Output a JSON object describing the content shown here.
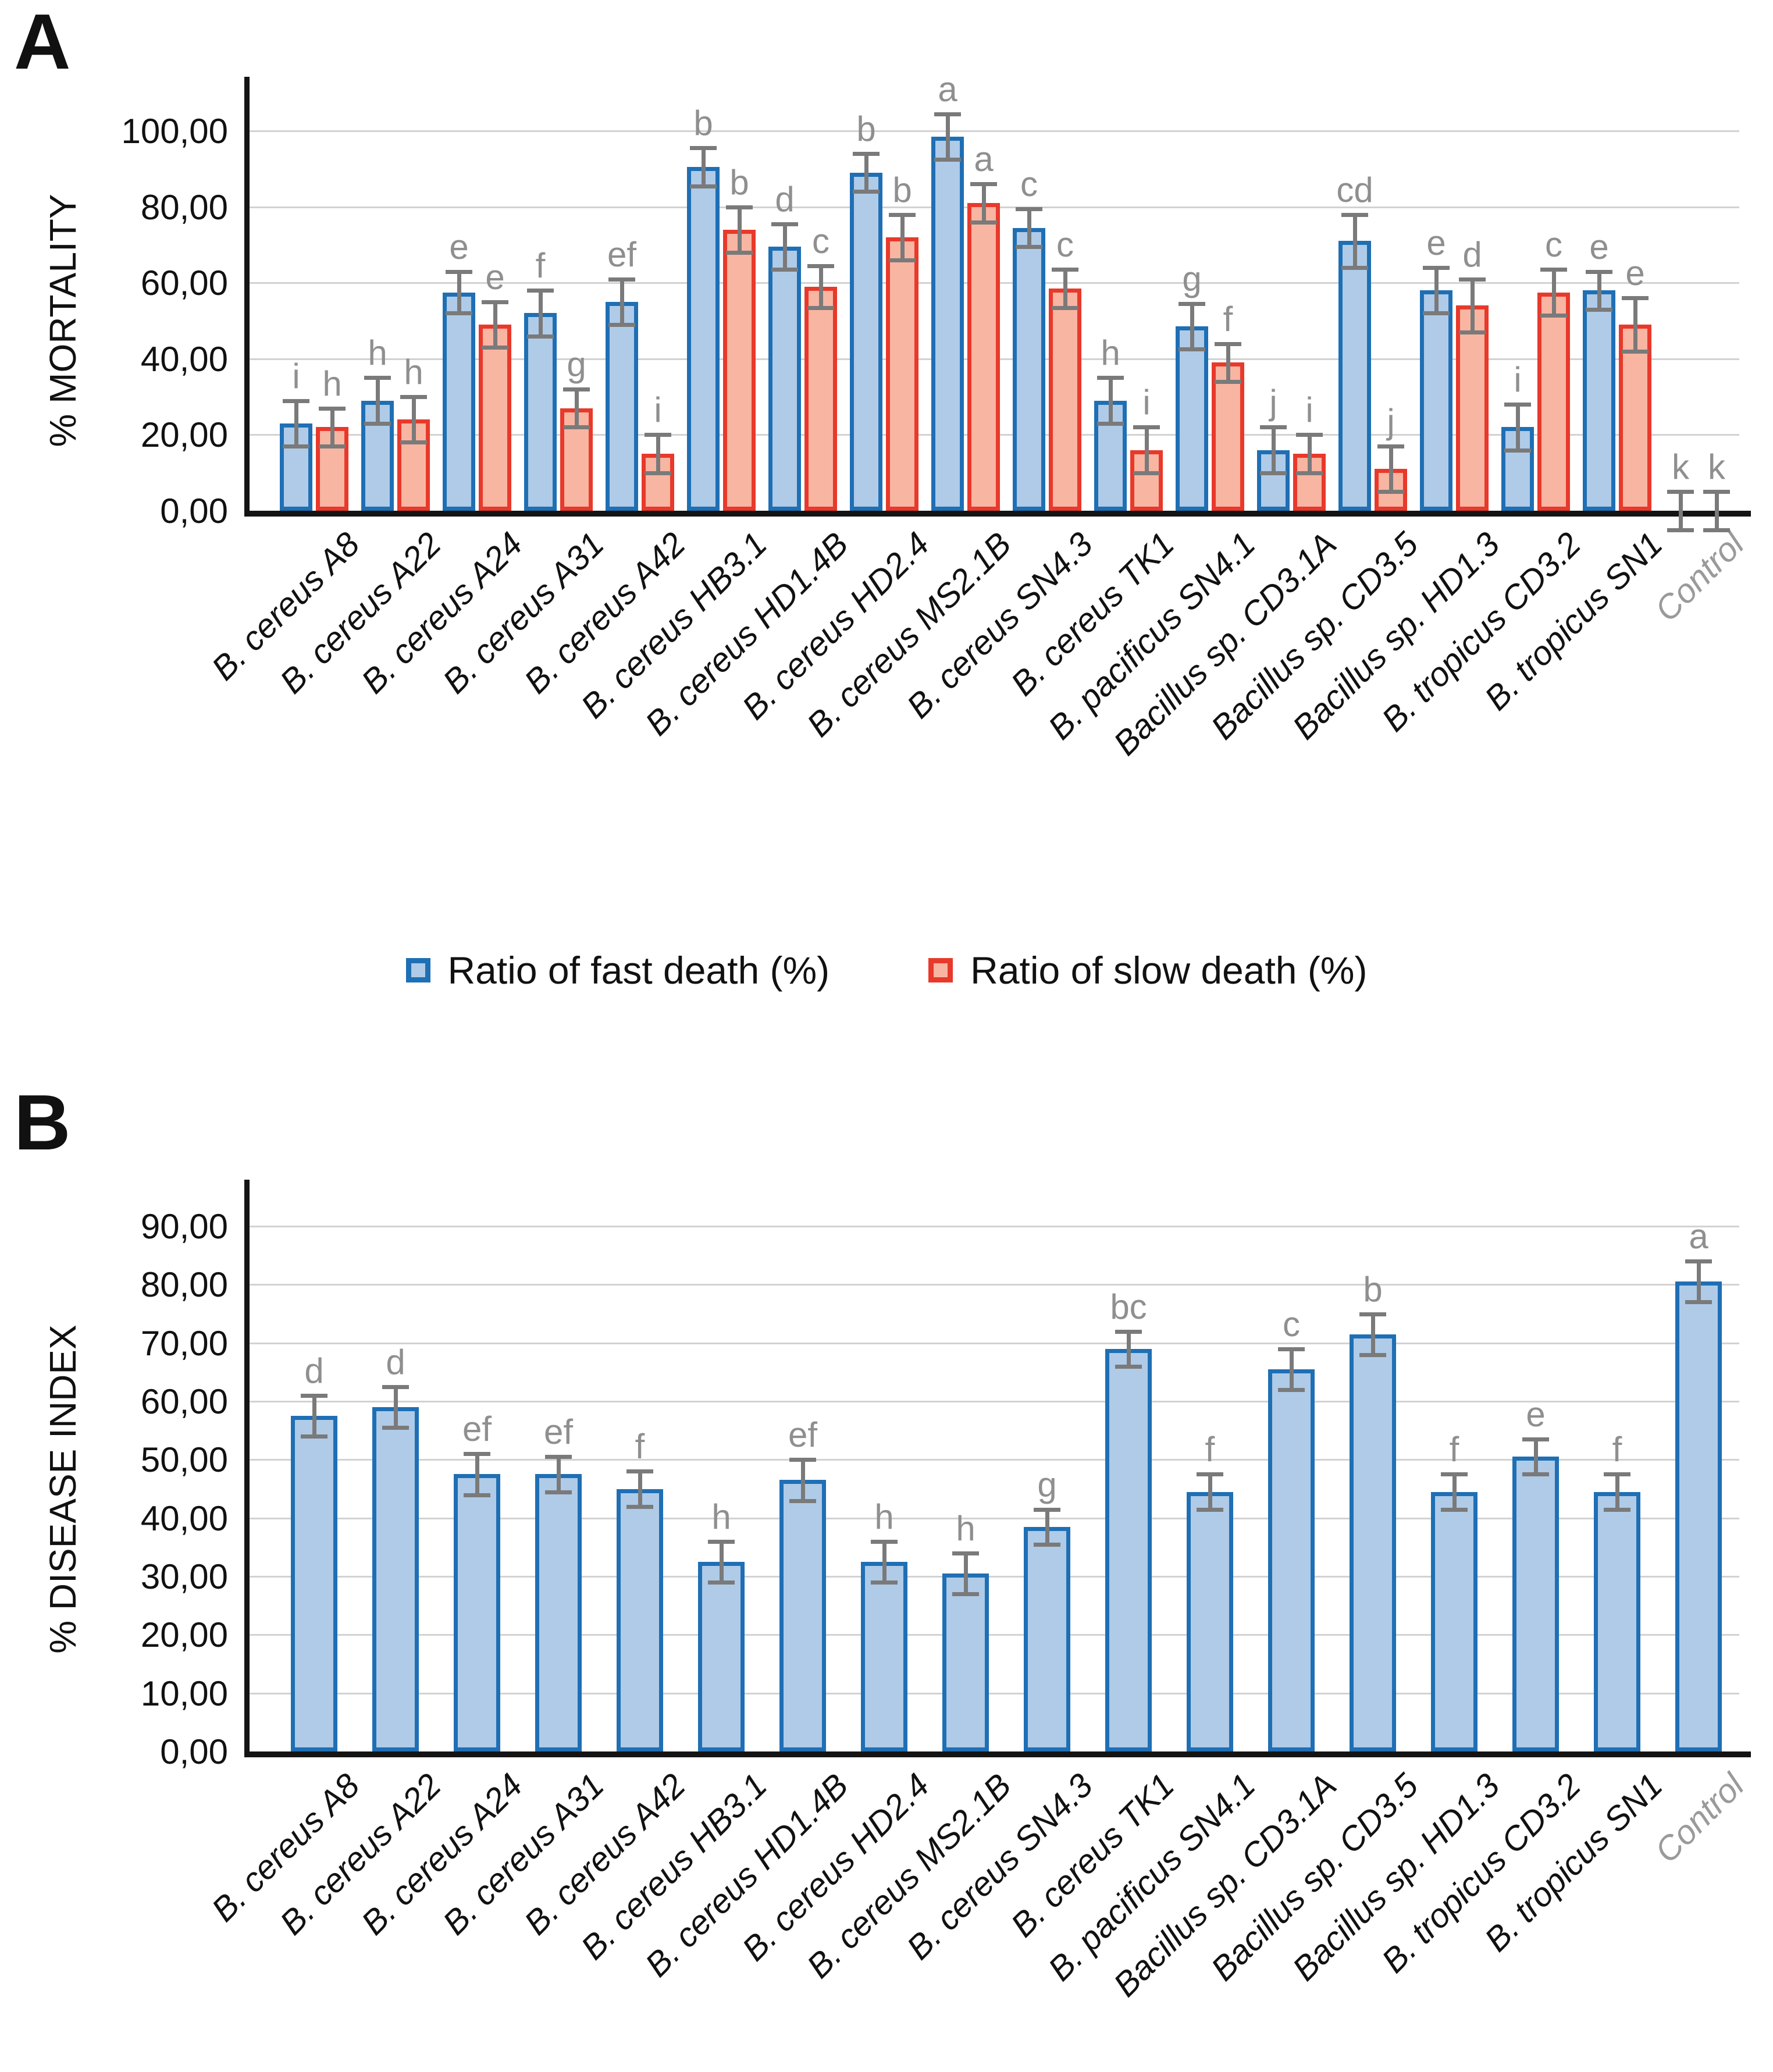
{
  "panels": {
    "a": {
      "label": "A"
    },
    "b": {
      "label": "B"
    }
  },
  "legend": {
    "fast_label": "Ratio of fast death (%)",
    "slow_label": "Ratio of slow death (%)"
  },
  "colors": {
    "fast_border": "#1F6FB4",
    "fast_fill": "#AFCBE8",
    "slow_border": "#E8392B",
    "slow_fill": "#F8B5A2",
    "error_bar": "#7A7A7A",
    "letter": "#8F8F8F",
    "gridline": "#D2D2D2",
    "axis": "#141414",
    "muted_label": "#9A9A9A"
  },
  "chart_data": [
    {
      "id": "mortality",
      "type": "bar",
      "title": "",
      "ylabel": "% MORTALITY",
      "xlabel": "",
      "ylim": [
        0,
        100
      ],
      "ytick_step": 20,
      "ytick_labels": [
        "0,00",
        "20,00",
        "40,00",
        "60,00",
        "80,00",
        "100,00"
      ],
      "grid": true,
      "legend_position": "bottom",
      "muted_index": 17,
      "categories": [
        "B. cereus A8",
        "B. cereus A22",
        "B. cereus A24",
        "B. cereus A31",
        "B. cereus A42",
        "B. cereus HB3.1",
        "B. cereus HD1.4B",
        "B. cereus HD2.4",
        "B. cereus MS2.1B",
        "B. cereus SN4.3",
        "B. cereus TK1",
        "B. pacificus SN4.1",
        "Bacillus sp. CD3.1A",
        "Bacillus sp. CD3.5",
        "Bacillus sp. HD1.3",
        "B. tropicus CD3.2",
        "B. tropicus SN1",
        "Control"
      ],
      "series": [
        {
          "name": "Ratio of fast death (%)",
          "values": [
            23,
            29,
            57.5,
            52,
            55,
            90.5,
            69.5,
            89,
            98.5,
            74.5,
            29,
            48.5,
            16,
            71,
            58,
            22,
            58,
            0
          ],
          "errors": [
            6,
            6,
            5.5,
            6,
            6,
            5,
            6,
            5,
            6,
            5,
            6,
            6,
            6,
            7,
            6,
            6,
            5,
            5
          ],
          "letters": [
            "i",
            "h",
            "e",
            "f",
            "ef",
            "b",
            "d",
            "b",
            "a",
            "c",
            "h",
            "g",
            "j",
            "cd",
            "e",
            "i",
            "e",
            "k"
          ]
        },
        {
          "name": "Ratio of slow death (%)",
          "values": [
            22,
            24,
            49,
            27,
            15,
            74,
            59,
            72,
            81,
            58.5,
            16,
            39,
            15,
            11,
            54,
            57.5,
            49,
            0
          ],
          "errors": [
            5,
            6,
            6,
            5,
            5,
            6,
            5.5,
            6,
            5,
            5,
            6,
            5,
            5,
            6,
            7,
            6,
            7,
            5
          ],
          "letters": [
            "h",
            "h",
            "e",
            "g",
            "i",
            "b",
            "c",
            "b",
            "a",
            "c",
            "i",
            "f",
            "i",
            "j",
            "d",
            "c",
            "e",
            "k"
          ]
        }
      ]
    },
    {
      "id": "disease_index",
      "type": "bar",
      "title": "",
      "ylabel": "% DISEASE INDEX",
      "xlabel": "",
      "ylim": [
        0,
        90
      ],
      "ytick_step": 10,
      "ytick_labels": [
        "0,00",
        "10,00",
        "20,00",
        "30,00",
        "40,00",
        "50,00",
        "60,00",
        "70,00",
        "80,00",
        "90,00"
      ],
      "grid": true,
      "legend_position": "none",
      "muted_index": 17,
      "categories": [
        "B. cereus A8",
        "B. cereus A22",
        "B. cereus A24",
        "B. cereus A31",
        "B. cereus A42",
        "B. cereus HB3.1",
        "B. cereus HD1.4B",
        "B. cereus HD2.4",
        "B. cereus MS2.1B",
        "B. cereus SN4.3",
        "B. cereus TK1",
        "B. pacificus SN4.1",
        "Bacillus sp. CD3.1A",
        "Bacillus sp. CD3.5",
        "Bacillus sp. HD1.3",
        "B. tropicus CD3.2",
        "B. tropicus SN1",
        "Control"
      ],
      "series": [
        {
          "name": "% Disease index",
          "values": [
            57.5,
            59,
            47.5,
            47.5,
            45,
            32.5,
            46.5,
            32.5,
            30.5,
            38.5,
            69,
            44.5,
            65.5,
            71.5,
            44.5,
            50.5,
            44.5,
            80.5
          ],
          "errors": [
            3.5,
            3.5,
            3.5,
            3,
            3,
            3.5,
            3.5,
            3.5,
            3.5,
            3,
            3,
            3,
            3.5,
            3.5,
            3,
            3,
            3,
            3.5
          ],
          "letters": [
            "d",
            "d",
            "ef",
            "ef",
            "f",
            "h",
            "ef",
            "h",
            "h",
            "g",
            "bc",
            "f",
            "c",
            "b",
            "f",
            "e",
            "f",
            "a"
          ]
        }
      ]
    }
  ]
}
